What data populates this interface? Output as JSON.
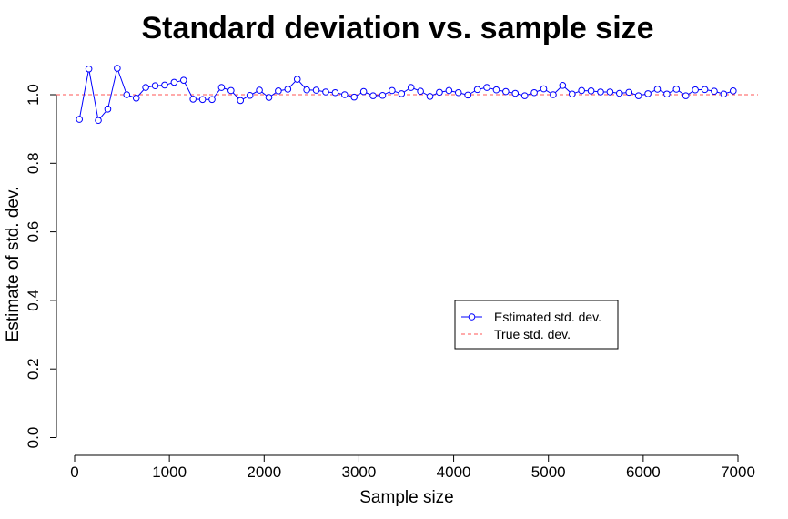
{
  "chart_data": {
    "type": "line",
    "title": "Standard deviation vs. sample size",
    "xlabel": "Sample size",
    "ylabel": "Estimate of std. dev.",
    "xlim": [
      0,
      7000
    ],
    "ylim": [
      0,
      1.1
    ],
    "x_ticks": [
      "0",
      "1000",
      "2000",
      "3000",
      "4000",
      "5000",
      "6000",
      "7000"
    ],
    "y_ticks": [
      "0.0",
      "0.2",
      "0.4",
      "0.6",
      "0.8",
      "1.0"
    ],
    "legend_position": "center-right",
    "series": [
      {
        "name": "Estimated std. dev.",
        "color": "#0000ff",
        "style": "line-with-points",
        "x": [
          50,
          150,
          250,
          350,
          450,
          550,
          650,
          750,
          850,
          950,
          1050,
          1150,
          1250,
          1350,
          1450,
          1550,
          1650,
          1750,
          1850,
          1950,
          2050,
          2150,
          2250,
          2350,
          2450,
          2550,
          2650,
          2750,
          2850,
          2950,
          3050,
          3150,
          3250,
          3350,
          3450,
          3550,
          3650,
          3750,
          3850,
          3950,
          4050,
          4150,
          4250,
          4350,
          4450,
          4550,
          4650,
          4750,
          4850,
          4950,
          5050,
          5150,
          5250,
          5350,
          5450,
          5550,
          5650,
          5750,
          5850,
          5950,
          6050,
          6150,
          6250,
          6350,
          6450,
          6550,
          6650,
          6750,
          6850,
          6950
        ],
        "values": [
          0.928,
          1.075,
          0.925,
          0.958,
          1.077,
          1.0,
          0.99,
          1.021,
          1.026,
          1.028,
          1.036,
          1.042,
          0.987,
          0.986,
          0.986,
          1.021,
          1.012,
          0.983,
          0.998,
          1.013,
          0.992,
          1.011,
          1.016,
          1.045,
          1.014,
          1.013,
          1.008,
          1.006,
          1.0,
          0.993,
          1.009,
          0.997,
          0.998,
          1.012,
          1.003,
          1.021,
          1.01,
          0.995,
          1.007,
          1.012,
          1.006,
          0.999,
          1.015,
          1.021,
          1.014,
          1.009,
          1.004,
          0.997,
          1.006,
          1.017,
          1.0,
          1.027,
          1.002,
          1.012,
          1.011,
          1.008,
          1.008,
          1.004,
          1.007,
          0.997,
          1.003,
          1.016,
          1.002,
          1.016,
          0.997,
          1.014,
          1.015,
          1.01,
          1.002,
          1.011
        ]
      },
      {
        "name": "True std. dev.",
        "color": "#ff5555",
        "style": "dashed-horizontal",
        "y": 1.0
      }
    ]
  }
}
